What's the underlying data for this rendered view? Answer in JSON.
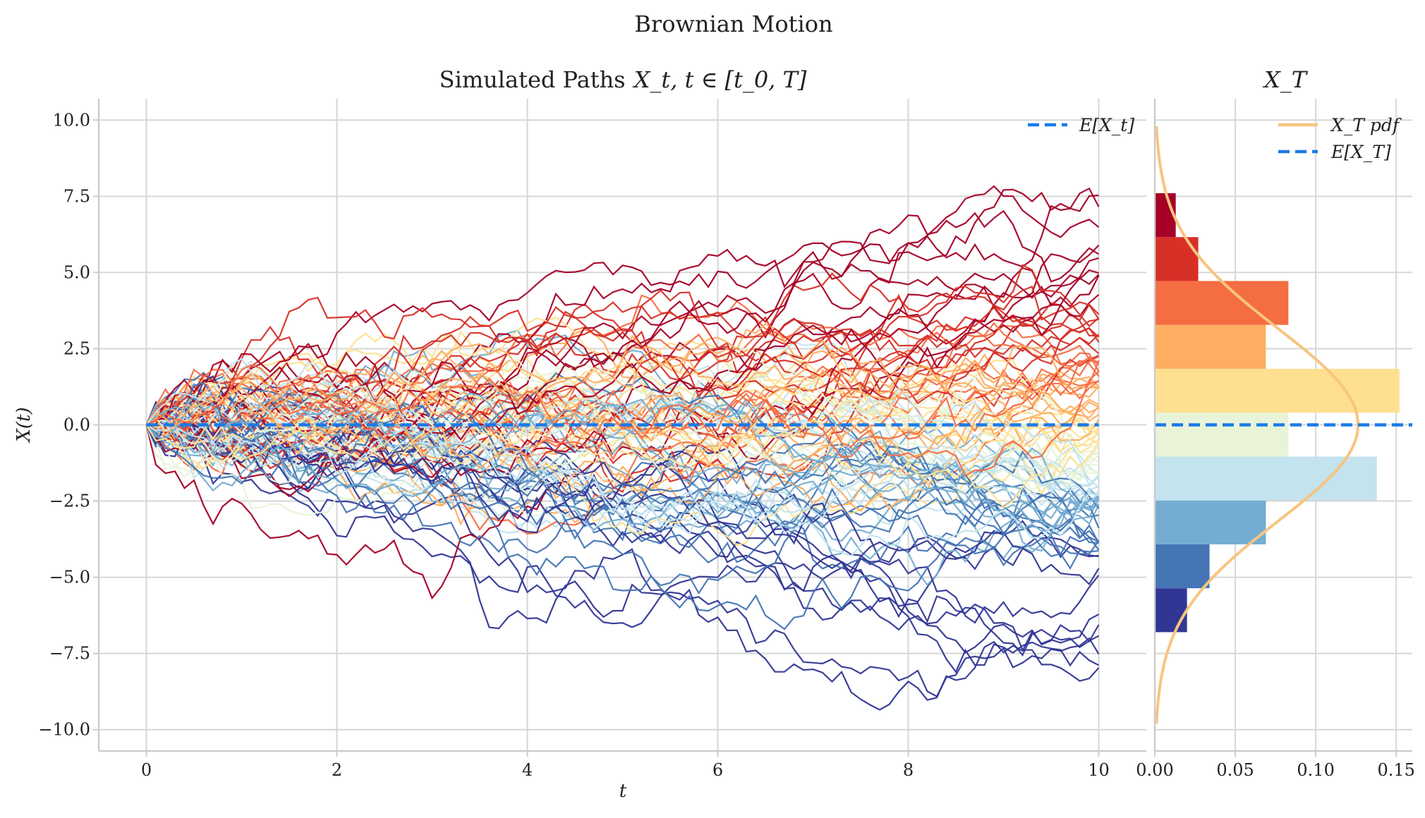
{
  "figure": {
    "suptitle": "Brownian Motion"
  },
  "colors": {
    "expectation_line": "#1a7ae8",
    "pdf_line": "#f7c57f",
    "palette": [
      "#a50026",
      "#d73027",
      "#f46d43",
      "#fdae61",
      "#fee090",
      "#e8f3d8",
      "#c3e3ee",
      "#74add1",
      "#4575b4",
      "#313695"
    ]
  },
  "chart_data": [
    {
      "id": "paths",
      "type": "line",
      "title": "Simulated Paths",
      "title_math": "X_t, t ∈ [t_0, T]",
      "xlabel": "t",
      "ylabel": "X(t)",
      "xlim": [
        -0.5,
        10.5
      ],
      "ylim": [
        -10.7,
        10.7
      ],
      "xticks": [
        0,
        2,
        4,
        6,
        8,
        10
      ],
      "yticks": [
        10.0,
        7.5,
        5.0,
        2.5,
        0.0,
        -2.5,
        -5.0,
        -7.5,
        -10.0
      ],
      "ytick_labels": [
        "10.0",
        "7.5",
        "5.0",
        "2.5",
        "0.0",
        "−2.5",
        "−5.0",
        "−7.5",
        "−10.0"
      ],
      "grid": true,
      "legend_position": "top-right",
      "legend": [
        {
          "label": "E[X_t]",
          "style": "dashed",
          "color": "#1a7ae8"
        }
      ],
      "t_start": 0,
      "t_end": 10,
      "expectation": 0.0,
      "n_paths": 100,
      "n_steps": 100
    },
    {
      "id": "terminal",
      "type": "bar",
      "title": "X_T",
      "orientation": "horizontal",
      "xlim": [
        0,
        0.16
      ],
      "xticks": [
        0.0,
        0.05,
        0.1,
        0.15
      ],
      "xtick_labels": [
        "0.00",
        "0.05",
        "0.10",
        "0.15"
      ],
      "grid": true,
      "legend_position": "top-right",
      "legend": [
        {
          "label": "X_T pdf",
          "style": "solid",
          "color": "#f7c57f"
        },
        {
          "label": "E[X_T]",
          "style": "dashed",
          "color": "#1a7ae8"
        }
      ],
      "bins": [
        {
          "from": -6.8,
          "to": -5.36,
          "density": 0.02,
          "color": "#313695"
        },
        {
          "from": -5.36,
          "to": -3.92,
          "density": 0.034,
          "color": "#4575b4"
        },
        {
          "from": -3.92,
          "to": -2.48,
          "density": 0.069,
          "color": "#74add1"
        },
        {
          "from": -2.48,
          "to": -1.04,
          "density": 0.138,
          "color": "#c3e3ee"
        },
        {
          "from": -1.04,
          "to": 0.4,
          "density": 0.083,
          "color": "#e8f3d8"
        },
        {
          "from": 0.4,
          "to": 1.84,
          "density": 0.152,
          "color": "#fee090"
        },
        {
          "from": 1.84,
          "to": 3.28,
          "density": 0.069,
          "color": "#fdae61"
        },
        {
          "from": 3.28,
          "to": 4.72,
          "density": 0.083,
          "color": "#f46d43"
        },
        {
          "from": 4.72,
          "to": 6.16,
          "density": 0.027,
          "color": "#d73027"
        },
        {
          "from": 6.16,
          "to": 7.6,
          "density": 0.013,
          "color": "#a50026"
        }
      ],
      "pdf": {
        "mean": 0.0,
        "std": 3.16,
        "y_range": [
          -9.8,
          9.8
        ]
      },
      "expectation": 0.0
    }
  ]
}
